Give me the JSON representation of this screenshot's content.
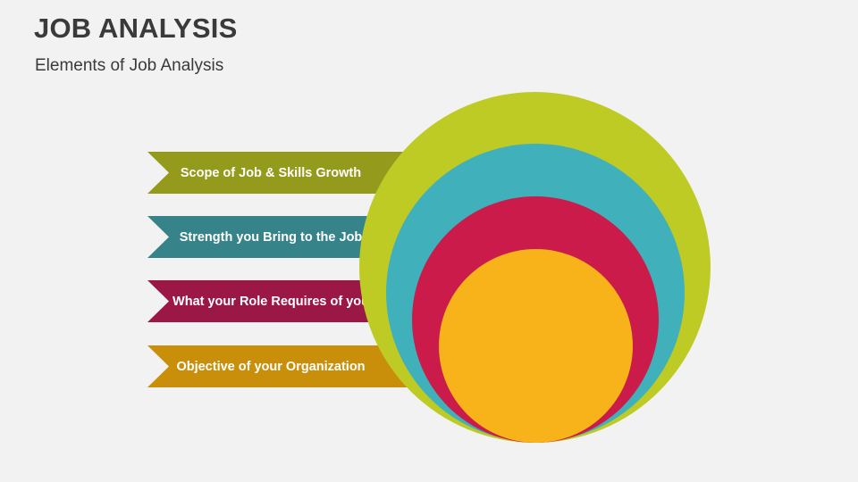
{
  "header": {
    "title": "JOB ANALYSIS",
    "subtitle": "Elements of Job Analysis"
  },
  "diagram": {
    "elements": [
      {
        "label": "Scope of Job & Skills Growth",
        "ribbon_color": "#949a1c",
        "circle_color": "#bfcb25"
      },
      {
        "label": "Strength you Bring to the Job",
        "ribbon_color": "#36848a",
        "circle_color": "#40b0ba"
      },
      {
        "label": "What your Role Requires of you",
        "ribbon_color": "#9b1846",
        "circle_color": "#ca1b4b"
      },
      {
        "label": "Objective of your Organization",
        "ribbon_color": "#c98f0b",
        "circle_color": "#f8b21a"
      }
    ]
  }
}
